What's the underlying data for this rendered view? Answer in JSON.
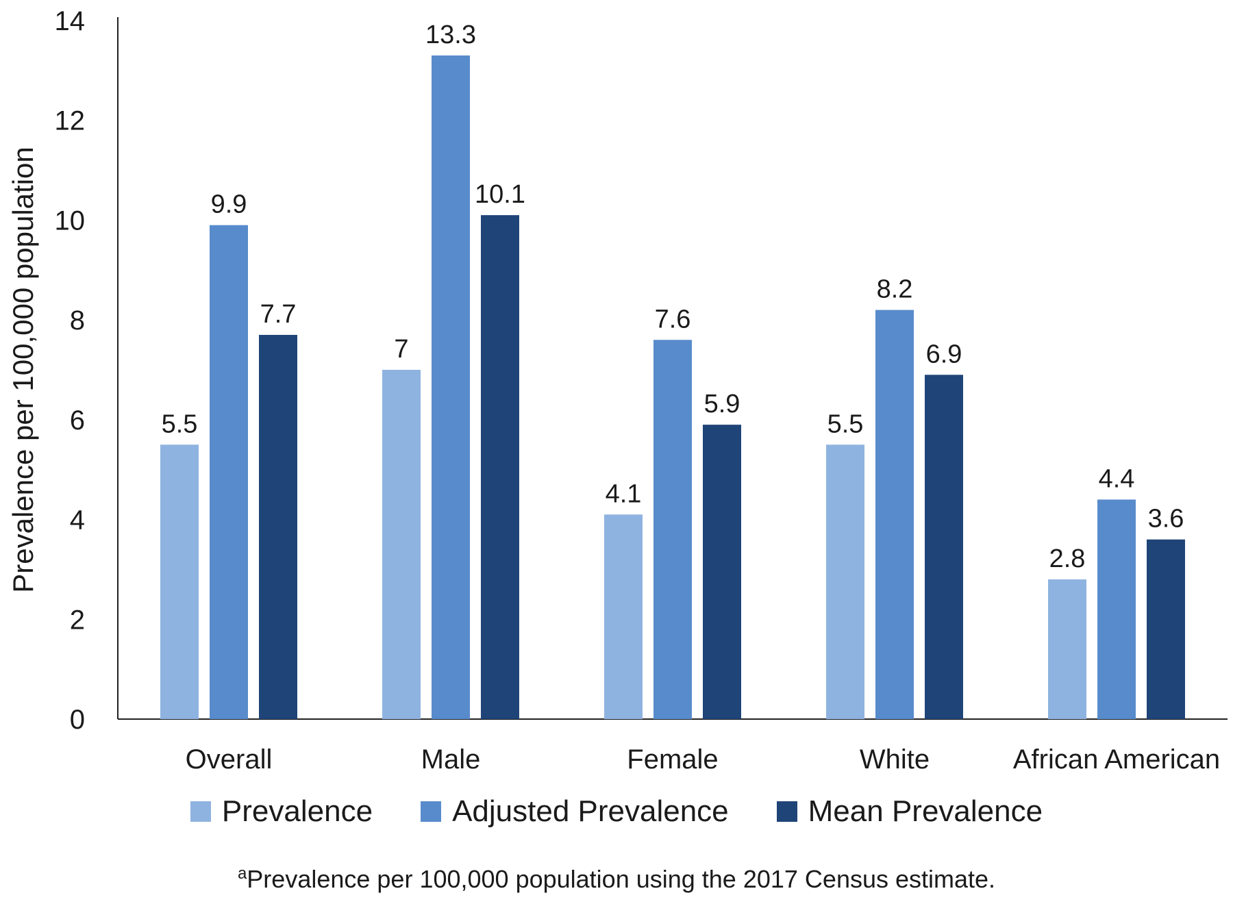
{
  "chart_data": {
    "type": "bar",
    "title": "",
    "xlabel": "",
    "ylabel": "Prevalence per 100,000 population",
    "ylim": [
      0,
      14
    ],
    "yticks": [
      0,
      2,
      4,
      6,
      8,
      10,
      12,
      14
    ],
    "grid": false,
    "legend_position": "bottom",
    "categories": [
      "Overall",
      "Male",
      "Female",
      "White",
      "African American"
    ],
    "series": [
      {
        "name": "Prevalence",
        "color": "#8FB3E0",
        "values": [
          5.5,
          7,
          4.1,
          5.5,
          2.8
        ],
        "labels": [
          "5.5",
          "7",
          "4.1",
          "5.5",
          "2.8"
        ]
      },
      {
        "name": "Adjusted Prevalence",
        "color": "#588BCB",
        "values": [
          9.9,
          13.3,
          7.6,
          8.2,
          4.4
        ],
        "labels": [
          "9.9",
          "13.3",
          "7.6",
          "8.2",
          "4.4"
        ]
      },
      {
        "name": "Mean Prevalence",
        "color": "#1F4478",
        "values": [
          7.7,
          10.1,
          5.9,
          6.9,
          3.6
        ],
        "labels": [
          "7.7",
          "10.1",
          "5.9",
          "6.9",
          "3.6"
        ]
      }
    ]
  },
  "footnote": {
    "marker": "a",
    "text": "Prevalence per 100,000 population using the 2017 Census estimate."
  }
}
